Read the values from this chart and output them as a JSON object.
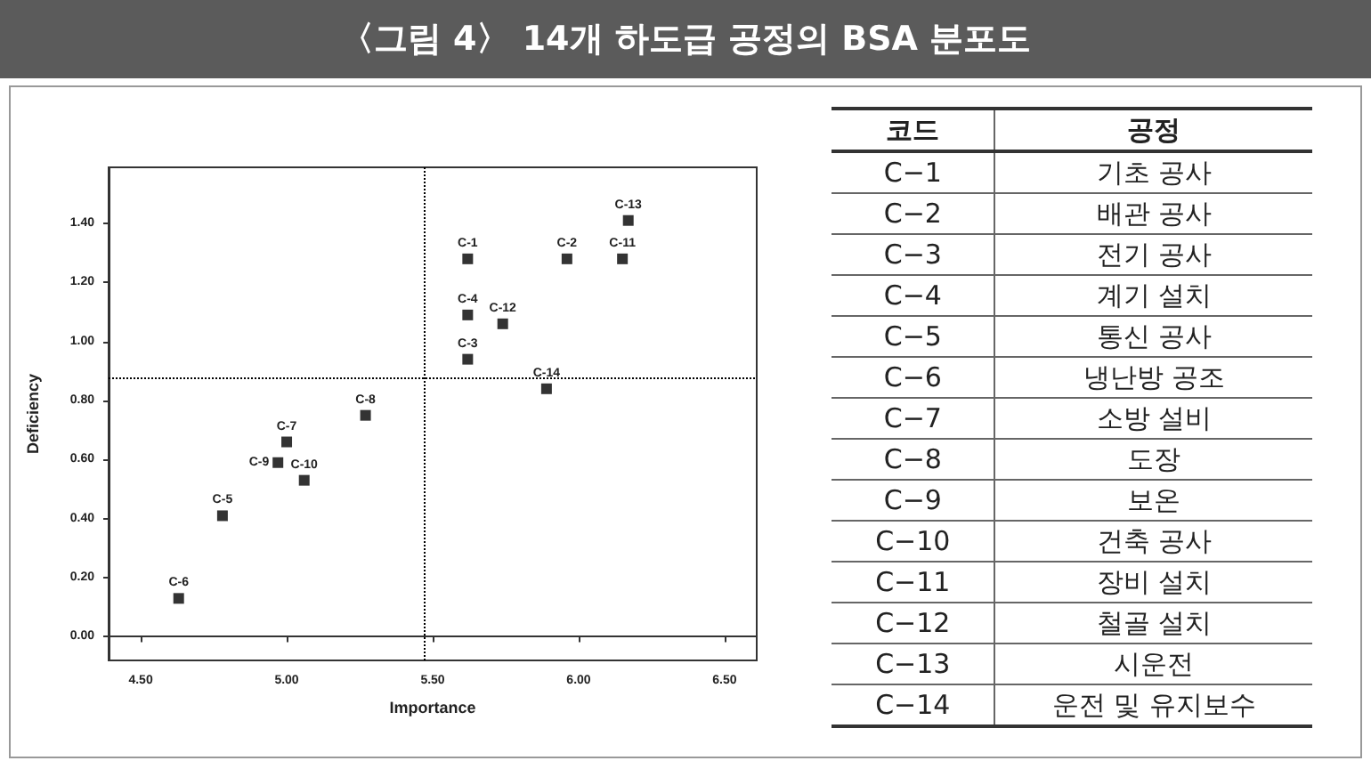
{
  "chart_data": [
    {
      "type": "scatter",
      "title": "〈그림 4〉 14개 하도급 공정의 BSA 분포도",
      "xlabel": "Importance",
      "ylabel": "Deficiency",
      "marker": "square",
      "x": [
        5.62,
        5.96,
        5.62,
        5.62,
        4.78,
        4.63,
        5.0,
        5.27,
        4.97,
        5.06,
        6.15,
        5.74,
        6.17,
        5.89
      ],
      "values": [
        1.28,
        1.28,
        0.94,
        1.09,
        0.41,
        0.13,
        0.66,
        0.75,
        0.59,
        0.53,
        1.28,
        1.06,
        1.41,
        0.84
      ],
      "color": "#000000",
      "xlim": [
        4.39,
        6.61
      ],
      "ylim": [
        -0.08,
        1.59
      ],
      "xticks": [
        {
          "value": 4.5,
          "label": "4.50"
        },
        {
          "value": 5,
          "label": "5.00"
        },
        {
          "value": 5.5,
          "label": "5.50"
        },
        {
          "value": 6,
          "label": "6.00"
        },
        {
          "value": 6.5,
          "label": "6.50"
        }
      ],
      "yticks": [
        {
          "value": 0,
          "label": "0.00"
        },
        {
          "value": 0.2,
          "label": "0.20"
        },
        {
          "value": 0.4,
          "label": "0.40"
        },
        {
          "value": 0.6,
          "label": "0.60"
        },
        {
          "value": 0.8,
          "label": "0.80"
        },
        {
          "value": 1,
          "label": "1.00"
        },
        {
          "value": 1.2,
          "label": "1.20"
        },
        {
          "value": 1.4,
          "label": "1.40"
        }
      ],
      "ref_lines": [
        {
          "axis": "x",
          "value": 5.47,
          "line_style": "dotted",
          "color": "#000000"
        },
        {
          "axis": "y",
          "value": 0.88,
          "line_style": "dotted",
          "color": "#000000"
        }
      ],
      "annotations": [
        {
          "text": "C-1",
          "x": 5.62,
          "y": 1.28
        },
        {
          "text": "C-2",
          "x": 5.96,
          "y": 1.28
        },
        {
          "text": "C-3",
          "x": 5.62,
          "y": 0.94
        },
        {
          "text": "C-4",
          "x": 5.62,
          "y": 1.09
        },
        {
          "text": "C-5",
          "x": 4.78,
          "y": 0.41
        },
        {
          "text": "C-6",
          "x": 4.63,
          "y": 0.13
        },
        {
          "text": "C-7",
          "x": 5.0,
          "y": 0.66
        },
        {
          "text": "C-8",
          "x": 5.27,
          "y": 0.75
        },
        {
          "text": "C-9",
          "x": 4.97,
          "y": 0.59
        },
        {
          "text": "C-10",
          "x": 5.06,
          "y": 0.53
        },
        {
          "text": "C-11",
          "x": 6.15,
          "y": 1.28
        },
        {
          "text": "C-12",
          "x": 5.74,
          "y": 1.06
        },
        {
          "text": "C-13",
          "x": 6.17,
          "y": 1.41
        },
        {
          "text": "C-14",
          "x": 5.89,
          "y": 0.84
        }
      ]
    },
    {
      "type": "other",
      "categories": [
        "코드",
        "공정"
      ],
      "cell_labels": [
        [
          "C−1",
          "기초 공사"
        ],
        [
          "C−2",
          "배관 공사"
        ],
        [
          "C−3",
          "전기 공사"
        ],
        [
          "C−4",
          "계기 설치"
        ],
        [
          "C−5",
          "통신 공사"
        ],
        [
          "C−6",
          "냉난방 공조"
        ],
        [
          "C−7",
          "소방 설비"
        ],
        [
          "C−8",
          "도장"
        ],
        [
          "C−9",
          "보온"
        ],
        [
          "C−10",
          "건축 공사"
        ],
        [
          "C−11",
          "장비 설치"
        ],
        [
          "C−12",
          "철골 설치"
        ],
        [
          "C−13",
          "시운전"
        ],
        [
          "C−14",
          "운전 및 유지보수"
        ]
      ]
    }
  ]
}
